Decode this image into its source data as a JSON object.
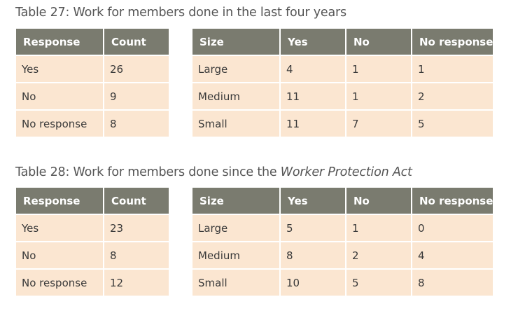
{
  "table27": {
    "title": "Table 27: Work for members done in the last four years",
    "response_headers": [
      "Response",
      "Count"
    ],
    "response_rows": [
      [
        "Yes",
        "26"
      ],
      [
        "No",
        "9"
      ],
      [
        "No response",
        "8"
      ]
    ],
    "size_headers": [
      "Size",
      "Yes",
      "No",
      "No response"
    ],
    "size_rows": [
      [
        "Large",
        "4",
        "1",
        "1"
      ],
      [
        "Medium",
        "11",
        "1",
        "2"
      ],
      [
        "Small",
        "11",
        "7",
        "5"
      ]
    ]
  },
  "table28": {
    "title_prefix": "Table 28: Work for members done since the ",
    "title_italic": "Worker Protection Act",
    "response_headers": [
      "Response",
      "Count"
    ],
    "response_rows": [
      [
        "Yes",
        "23"
      ],
      [
        "No",
        "8"
      ],
      [
        "No response",
        "12"
      ]
    ],
    "size_headers": [
      "Size",
      "Yes",
      "No",
      "No response"
    ],
    "size_rows": [
      [
        "Large",
        "5",
        "1",
        "0"
      ],
      [
        "Medium",
        "8",
        "2",
        "4"
      ],
      [
        "Small",
        "10",
        "5",
        "8"
      ]
    ]
  },
  "colors": {
    "header_bg": "#7a7b6f",
    "cell_bg": "#fbe6d1",
    "title_text": "#555555"
  }
}
